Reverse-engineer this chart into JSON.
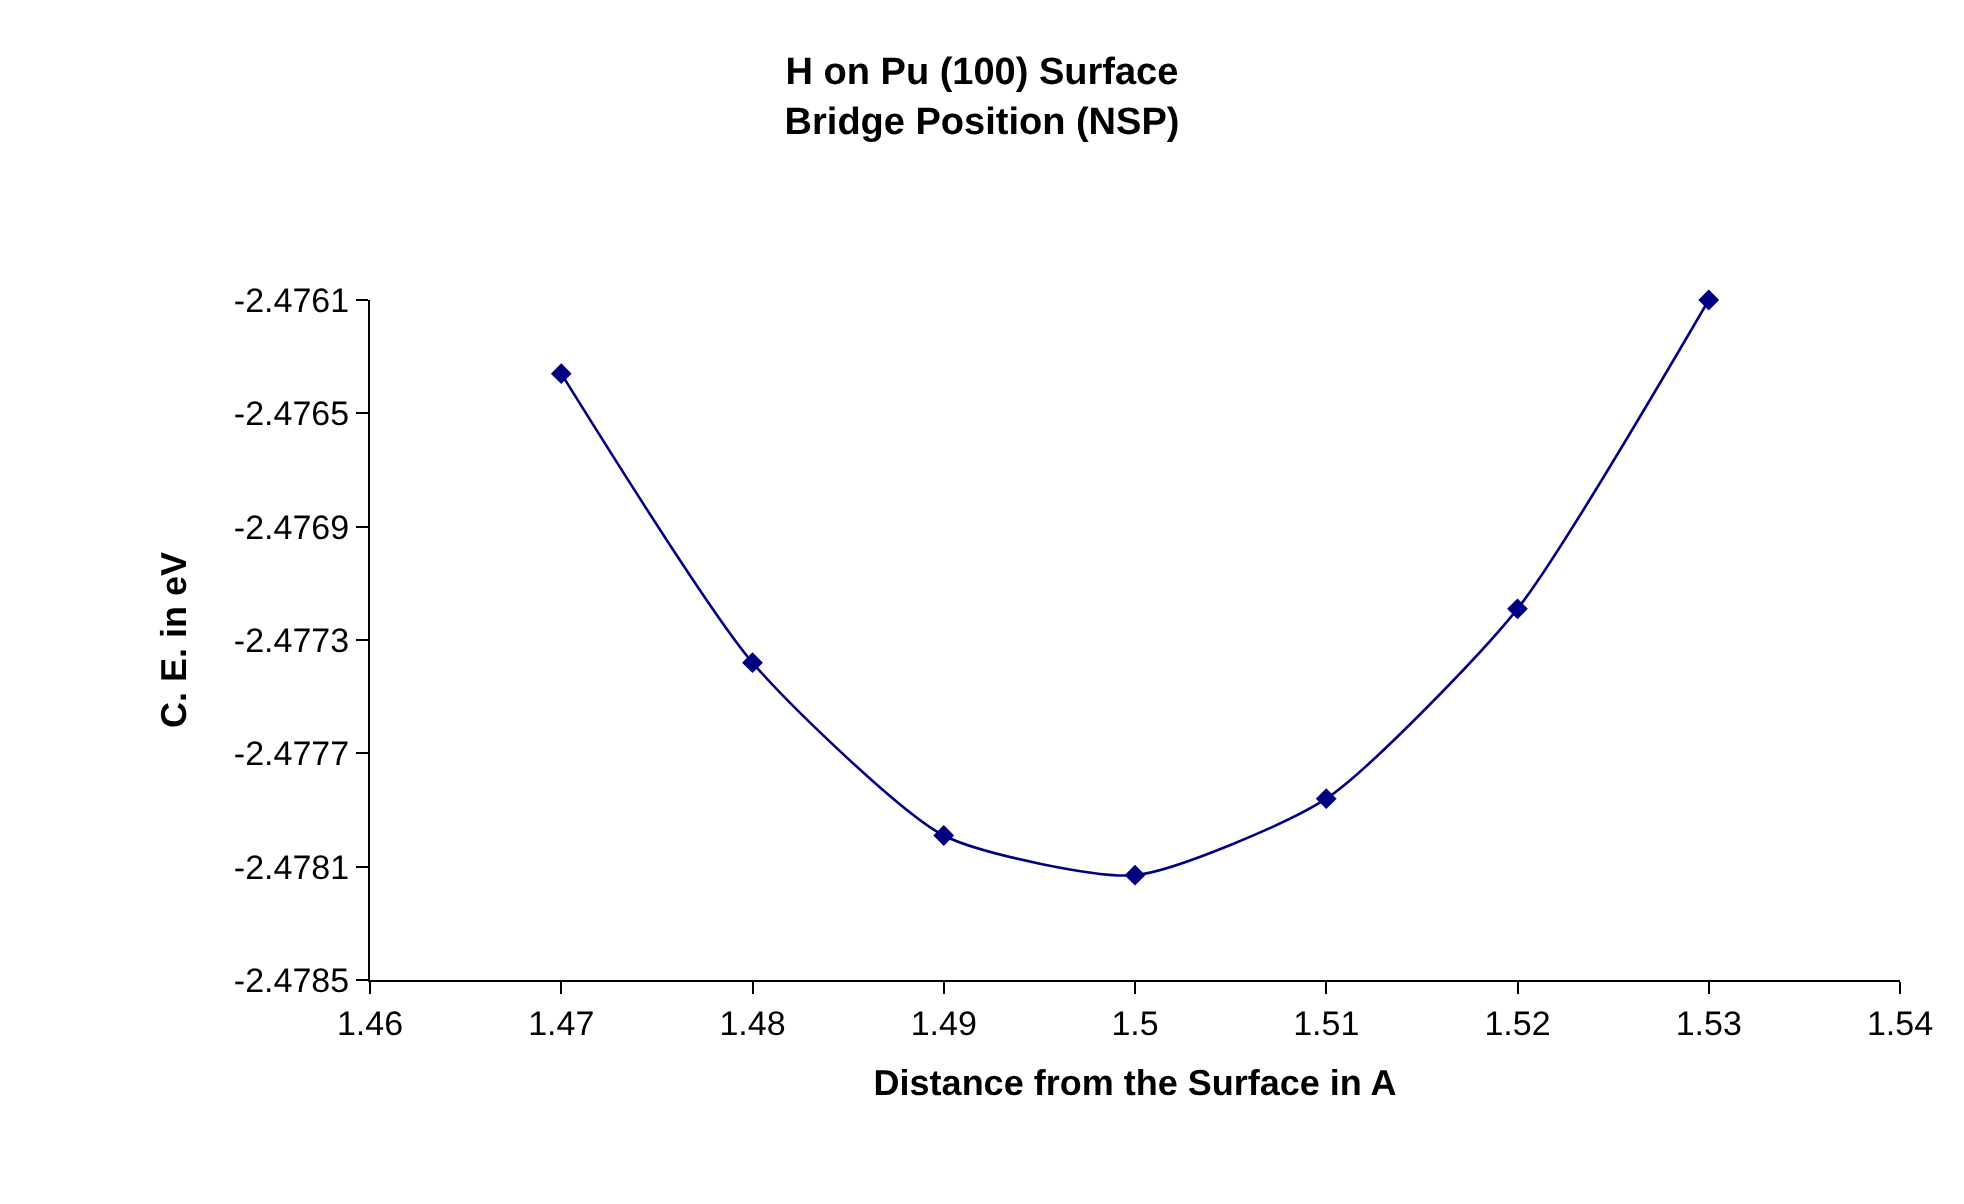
{
  "chart_data": {
    "type": "line",
    "title": "H on Pu (100) Surface\nBridge Position (NSP)",
    "xlabel": "Distance from the Surface in A",
    "ylabel": "C. E. in eV",
    "x": [
      1.47,
      1.48,
      1.49,
      1.5,
      1.51,
      1.52,
      1.53
    ],
    "series": [
      {
        "color": "#000080",
        "values": [
          -2.47636,
          -2.47738,
          -2.47799,
          -2.47813,
          -2.47786,
          -2.47719,
          -2.4761
        ]
      }
    ],
    "xlim": [
      1.46,
      1.54
    ],
    "xticks": [
      1.46,
      1.47,
      1.48,
      1.49,
      1.5,
      1.51,
      1.52,
      1.53,
      1.54
    ],
    "ylim": [
      -2.4785,
      -2.4761
    ],
    "yticks": [
      -2.4785,
      -2.4781,
      -2.4777,
      -2.4773,
      -2.4769,
      -2.4765,
      -2.4761
    ],
    "grid": false,
    "marker": "diamond",
    "line_style": "solid"
  }
}
